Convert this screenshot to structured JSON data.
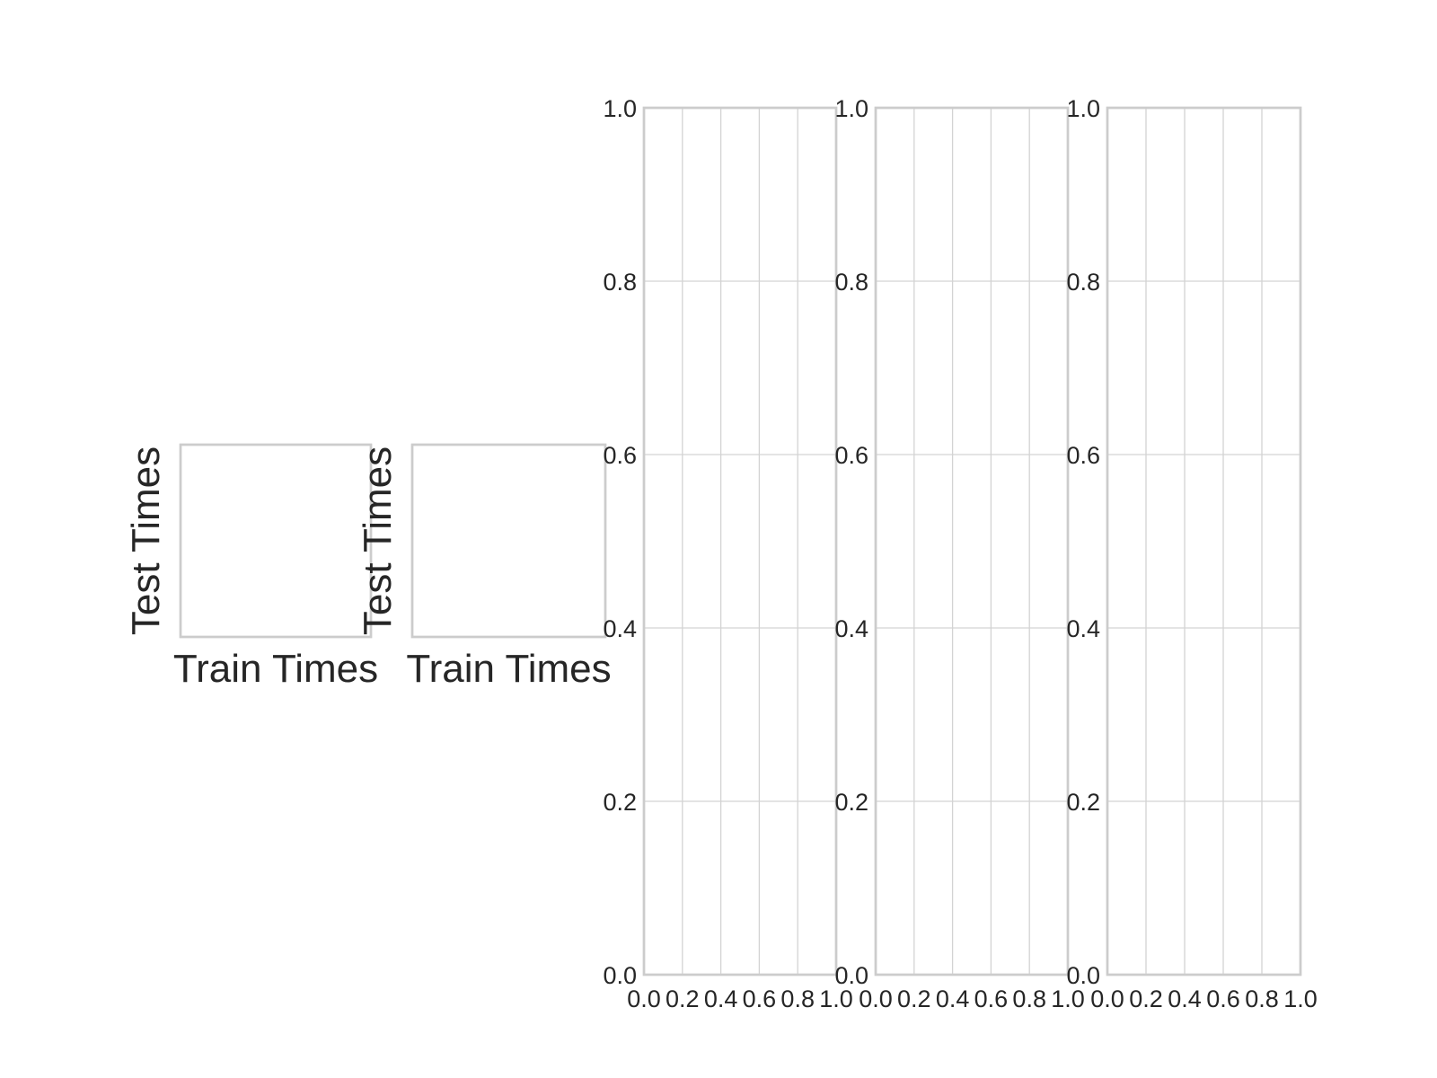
{
  "chart_data": [
    {
      "type": "scatter",
      "xlabel": "Train Times",
      "ylabel": "Test Times",
      "xticks": [],
      "yticks": [],
      "grid": false,
      "series": []
    },
    {
      "type": "scatter",
      "xlabel": "Train Times",
      "ylabel": "Test Times",
      "xticks": [],
      "yticks": [],
      "grid": false,
      "series": []
    },
    {
      "type": "line",
      "xlabel": "",
      "ylabel": "",
      "xlim": [
        0,
        1
      ],
      "ylim": [
        0,
        1
      ],
      "xticks": [
        "0.0",
        "0.2",
        "0.4",
        "0.6",
        "0.8",
        "1.0"
      ],
      "yticks": [
        "0.0",
        "0.2",
        "0.4",
        "0.6",
        "0.8",
        "1.0"
      ],
      "grid": true,
      "series": []
    },
    {
      "type": "line",
      "xlabel": "",
      "ylabel": "",
      "xlim": [
        0,
        1
      ],
      "ylim": [
        0,
        1
      ],
      "xticks": [
        "0.0",
        "0.2",
        "0.4",
        "0.6",
        "0.8",
        "1.0"
      ],
      "yticks": [
        "0.0",
        "0.2",
        "0.4",
        "0.6",
        "0.8",
        "1.0"
      ],
      "grid": true,
      "series": []
    },
    {
      "type": "line",
      "xlabel": "",
      "ylabel": "",
      "xlim": [
        0,
        1
      ],
      "ylim": [
        0,
        1
      ],
      "xticks": [
        "0.0",
        "0.2",
        "0.4",
        "0.6",
        "0.8",
        "1.0"
      ],
      "yticks": [
        "0.0",
        "0.2",
        "0.4",
        "0.6",
        "0.8",
        "1.0"
      ],
      "grid": true,
      "series": []
    }
  ]
}
